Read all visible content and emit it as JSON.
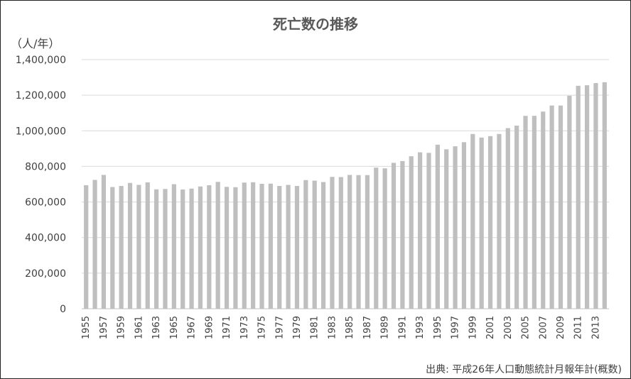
{
  "chart_data": {
    "type": "bar",
    "title": "死亡数の推移",
    "ylabel": "（人/年）",
    "ylim": [
      0,
      1400000
    ],
    "yticks": [
      0,
      200000,
      400000,
      600000,
      800000,
      1000000,
      1200000,
      1400000
    ],
    "ytick_labels": [
      "0",
      "200,000",
      "400,000",
      "600,000",
      "800,000",
      "1,000,000",
      "1,200,000",
      "1,400,000"
    ],
    "grid": true,
    "bar_color": "#bfbfbf",
    "categories": [
      "1955",
      "1956",
      "1957",
      "1958",
      "1959",
      "1960",
      "1961",
      "1962",
      "1963",
      "1964",
      "1965",
      "1966",
      "1967",
      "1968",
      "1969",
      "1970",
      "1971",
      "1972",
      "1973",
      "1974",
      "1975",
      "1976",
      "1977",
      "1978",
      "1979",
      "1980",
      "1981",
      "1982",
      "1983",
      "1984",
      "1985",
      "1986",
      "1987",
      "1988",
      "1989",
      "1990",
      "1991",
      "1992",
      "1993",
      "1994",
      "1995",
      "1996",
      "1997",
      "1998",
      "1999",
      "2000",
      "2001",
      "2002",
      "2003",
      "2004",
      "2005",
      "2006",
      "2007",
      "2008",
      "2009",
      "2010",
      "2011",
      "2012",
      "2013",
      "2014"
    ],
    "xtick_labels": [
      "1955",
      "1957",
      "1959",
      "1961",
      "1963",
      "1965",
      "1967",
      "1969",
      "1971",
      "1973",
      "1975",
      "1977",
      "1979",
      "1981",
      "1983",
      "1985",
      "1987",
      "1989",
      "1991",
      "1993",
      "1995",
      "1997",
      "1999",
      "2001",
      "2003",
      "2005",
      "2007",
      "2009",
      "2011",
      "2013"
    ],
    "values": [
      694000,
      724000,
      752000,
      684000,
      690000,
      707000,
      696000,
      710000,
      671000,
      673000,
      700000,
      670000,
      675000,
      687000,
      694000,
      713000,
      685000,
      683000,
      709000,
      711000,
      702000,
      703000,
      690000,
      696000,
      690000,
      723000,
      720000,
      712000,
      741000,
      740000,
      752000,
      751000,
      751000,
      793000,
      789000,
      820000,
      830000,
      857000,
      879000,
      876000,
      922000,
      896000,
      913000,
      936000,
      982000,
      962000,
      970000,
      982000,
      1015000,
      1029000,
      1084000,
      1084000,
      1108000,
      1142000,
      1142000,
      1197000,
      1253000,
      1256000,
      1268000,
      1273000
    ],
    "source": "出典: 平成26年人口動態統計月報年計(概数)"
  }
}
